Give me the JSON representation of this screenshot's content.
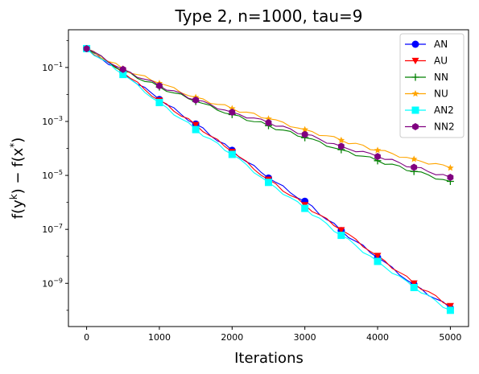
{
  "chart_data": {
    "type": "line",
    "title": "Type 2, n=1000, tau=9",
    "xlabel": "Iterations",
    "ylabel": "f(y^k) − f(x*)",
    "yscale": "log",
    "xlim": [
      -250,
      5250
    ],
    "ylim": [
      2.5e-11,
      2.5
    ],
    "xticks": [
      0,
      1000,
      2000,
      3000,
      4000,
      5000
    ],
    "xtick_labels": [
      "0",
      "1000",
      "2000",
      "3000",
      "4000",
      "5000"
    ],
    "yticks": [
      1e-09,
      1e-07,
      1e-05,
      0.001,
      0.1
    ],
    "ytick_labels": [
      "10^-9",
      "10^-7",
      "10^-5",
      "10^-3",
      "10^-1"
    ],
    "grid": false,
    "legend_position": "top-right",
    "x": [
      0,
      500,
      1000,
      1500,
      2000,
      2500,
      3000,
      3500,
      4000,
      4500,
      5000
    ],
    "series": [
      {
        "name": "AN",
        "color": "#0000ff",
        "marker": "circle",
        "values": [
          0.5,
          0.065,
          0.0065,
          0.0008,
          8.5e-05,
          8e-06,
          1.1e-06,
          9e-08,
          9e-09,
          9e-10,
          1.2e-10
        ]
      },
      {
        "name": "AU",
        "color": "#ff0000",
        "marker": "triangle-down",
        "values": [
          0.5,
          0.065,
          0.006,
          0.00075,
          7.5e-05,
          7e-06,
          8e-07,
          9.5e-08,
          1.05e-08,
          1e-09,
          1.45e-10
        ]
      },
      {
        "name": "NN",
        "color": "#008000",
        "marker": "plus",
        "values": [
          0.5,
          0.075,
          0.019,
          0.0055,
          0.0018,
          0.0007,
          0.00025,
          9e-05,
          3.5e-05,
          1.4e-05,
          6e-06
        ]
      },
      {
        "name": "NU",
        "color": "#ffa500",
        "marker": "star",
        "values": [
          0.5,
          0.09,
          0.026,
          0.0078,
          0.003,
          0.00125,
          0.0005,
          0.0002,
          8.5e-05,
          4e-05,
          1.9e-05
        ]
      },
      {
        "name": "AN2",
        "color": "#00ffff",
        "marker": "square",
        "values": [
          0.5,
          0.055,
          0.005,
          0.0005,
          6e-05,
          5.5e-06,
          6e-07,
          6e-08,
          6.5e-09,
          7e-10,
          1e-10
        ]
      },
      {
        "name": "NN2",
        "color": "#800080",
        "marker": "hexagon",
        "values": [
          0.5,
          0.085,
          0.021,
          0.0062,
          0.0022,
          0.0009,
          0.00033,
          0.00012,
          5e-05,
          2e-05,
          8.5e-06
        ]
      }
    ]
  }
}
